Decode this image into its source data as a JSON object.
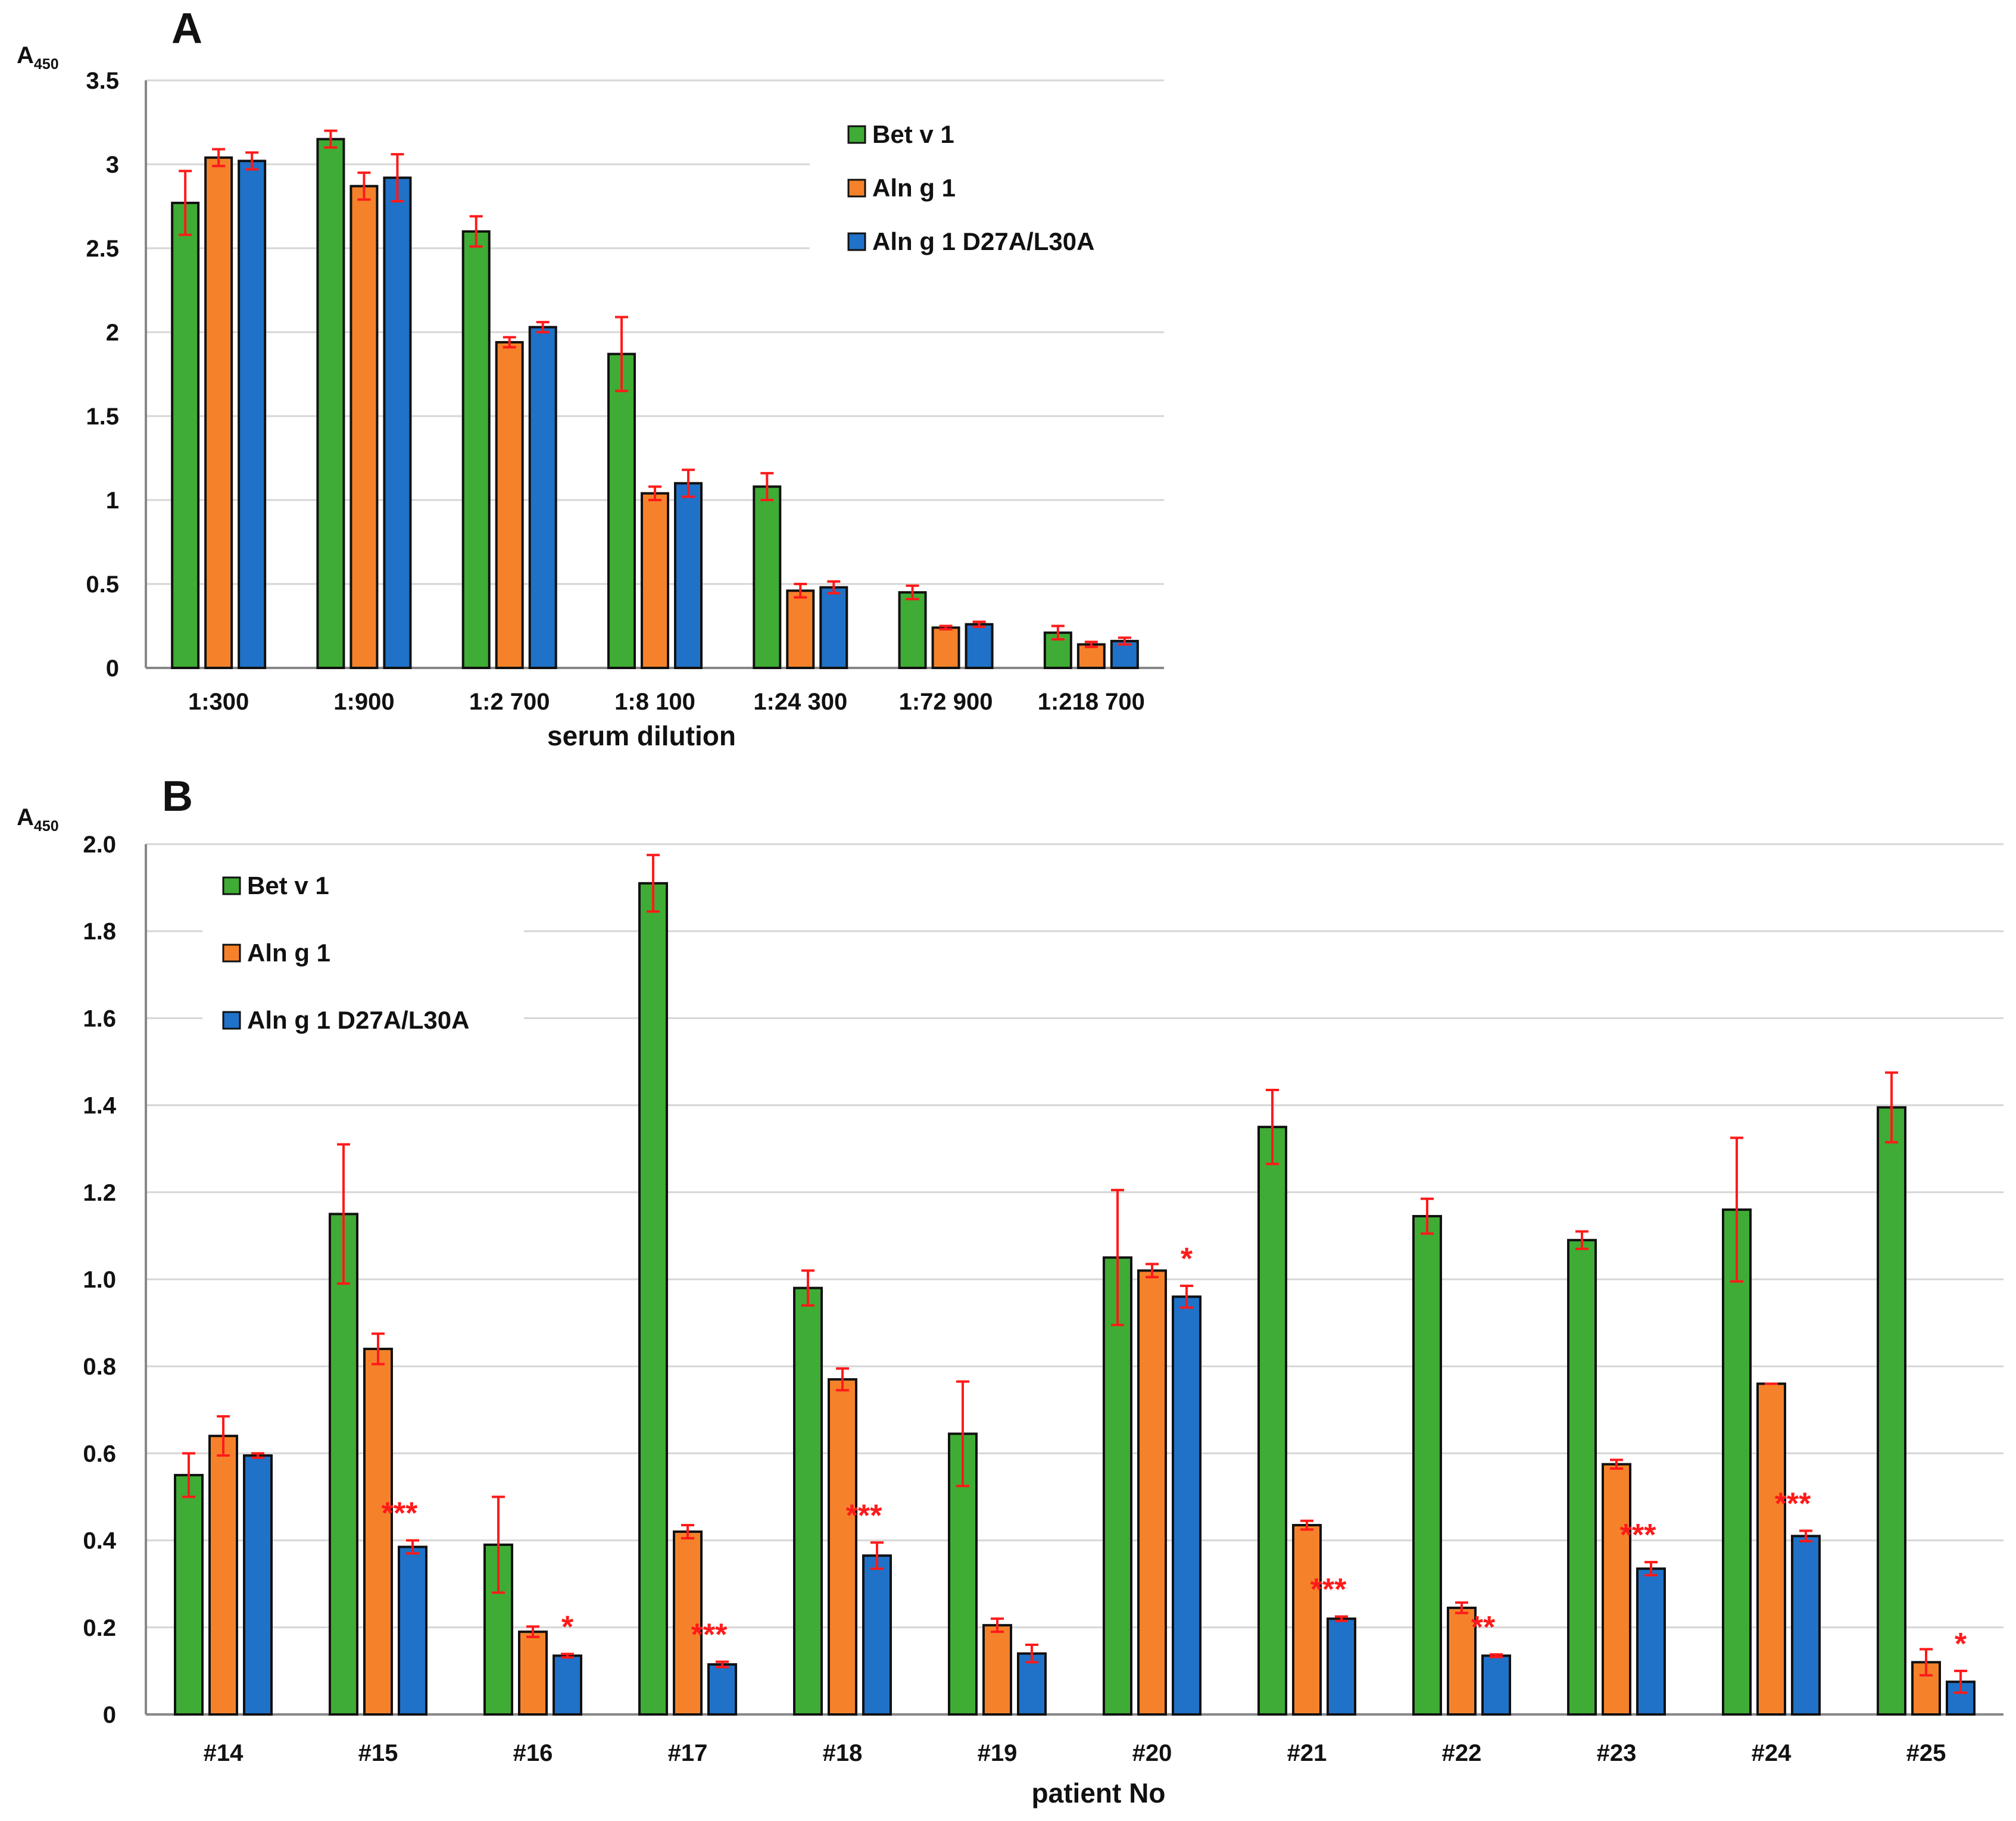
{
  "colors": {
    "bet_v_1": "#3fac35",
    "aln_g_1": "#f5822a",
    "aln_g_1_mutant": "#1f72c8",
    "error_bar": "#ff1a1a",
    "significance": "#ff1a1a"
  },
  "chart_data": [
    {
      "panel": "A",
      "type": "bar",
      "title": "",
      "ylabel_main": "A",
      "ylabel_sub": "450",
      "xlabel": "serum dilution",
      "ylim": [
        0,
        3.5
      ],
      "yticks": [
        "0",
        "0.5",
        "1",
        "1.5",
        "2",
        "2.5",
        "3",
        "3.5"
      ],
      "grid": true,
      "legend_position": "top-right",
      "categories": [
        "1:300",
        "1:900",
        "1:2 700",
        "1:8 100",
        "1:24 300",
        "1:72 900",
        "1:218 700"
      ],
      "series": [
        {
          "name": "Bet v 1",
          "color_key": "bet_v_1",
          "values": [
            2.77,
            3.15,
            2.6,
            1.87,
            1.08,
            0.45,
            0.21
          ],
          "errors": [
            0.19,
            0.05,
            0.09,
            0.22,
            0.08,
            0.04,
            0.04
          ]
        },
        {
          "name": "Aln g 1",
          "color_key": "aln_g_1",
          "values": [
            3.04,
            2.87,
            1.94,
            1.04,
            0.46,
            0.24,
            0.14
          ],
          "errors": [
            0.05,
            0.08,
            0.03,
            0.04,
            0.04,
            0.01,
            0.015
          ]
        },
        {
          "name": "Aln g 1 D27A/L30A",
          "color_key": "aln_g_1_mutant",
          "values": [
            3.02,
            2.92,
            2.03,
            1.1,
            0.48,
            0.26,
            0.16
          ],
          "errors": [
            0.05,
            0.14,
            0.03,
            0.08,
            0.035,
            0.015,
            0.02
          ]
        }
      ],
      "annotations": []
    },
    {
      "panel": "B",
      "type": "bar",
      "title": "",
      "ylabel_main": "A",
      "ylabel_sub": "450",
      "xlabel": "patient No",
      "ylim": [
        0,
        2.0
      ],
      "yticks": [
        "0",
        "0.2",
        "0.4",
        "0.6",
        "0.8",
        "1.0",
        "1.2",
        "1.4",
        "1.6",
        "1.8",
        "2.0"
      ],
      "grid": true,
      "legend_position": "top-left",
      "categories": [
        "#14",
        "#15",
        "#16",
        "#17",
        "#18",
        "#19",
        "#20",
        "#21",
        "#22",
        "#23",
        "#24",
        "#25"
      ],
      "series": [
        {
          "name": "Bet v 1",
          "color_key": "bet_v_1",
          "values": [
            0.55,
            1.15,
            0.39,
            1.91,
            0.98,
            0.645,
            1.05,
            1.35,
            1.145,
            1.09,
            1.16,
            1.395
          ],
          "errors": [
            0.05,
            0.16,
            0.11,
            0.065,
            0.04,
            0.12,
            0.155,
            0.085,
            0.04,
            0.02,
            0.165,
            0.08
          ]
        },
        {
          "name": "Aln g 1",
          "color_key": "aln_g_1",
          "values": [
            0.64,
            0.84,
            0.19,
            0.42,
            0.77,
            0.205,
            1.02,
            0.435,
            0.245,
            0.575,
            0.76,
            0.12
          ],
          "errors": [
            0.045,
            0.035,
            0.012,
            0.015,
            0.025,
            0.015,
            0.015,
            0.01,
            0.012,
            0.01,
            0.0,
            0.03
          ]
        },
        {
          "name": "Aln g 1 D27A/L30A",
          "color_key": "aln_g_1_mutant",
          "values": [
            0.595,
            0.385,
            0.135,
            0.115,
            0.365,
            0.14,
            0.96,
            0.22,
            0.135,
            0.335,
            0.41,
            0.075
          ],
          "errors": [
            0.005,
            0.015,
            0.004,
            0.006,
            0.03,
            0.02,
            0.025,
            0.005,
            0.003,
            0.015,
            0.012,
            0.025
          ]
        }
      ],
      "annotations": [
        {
          "category": "#15",
          "text": "***"
        },
        {
          "category": "#16",
          "text": "*"
        },
        {
          "category": "#17",
          "text": "***"
        },
        {
          "category": "#18",
          "text": "***"
        },
        {
          "category": "#20",
          "text": "*"
        },
        {
          "category": "#21",
          "text": "***"
        },
        {
          "category": "#22",
          "text": "**"
        },
        {
          "category": "#23",
          "text": "***"
        },
        {
          "category": "#24",
          "text": "***"
        },
        {
          "category": "#25",
          "text": "*"
        }
      ]
    }
  ]
}
